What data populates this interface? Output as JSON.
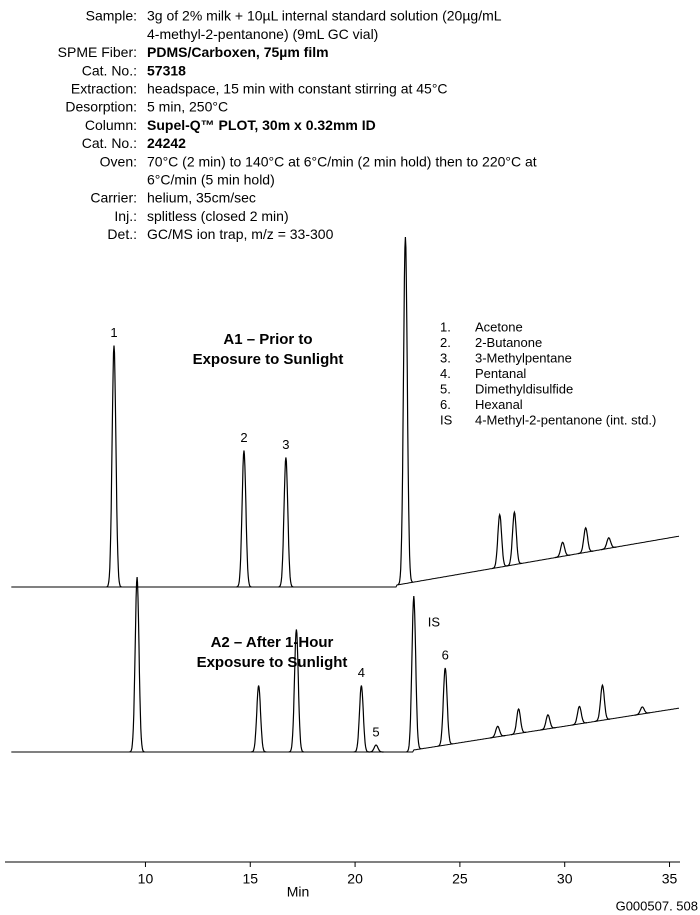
{
  "chart_data": {
    "type": "chromatogram",
    "method": [
      {
        "label": "Sample:",
        "lines": [
          "3g of 2% milk + 10µL internal standard solution (20µg/mL",
          "4-methyl-2-pentanone) (9mL GC vial)"
        ],
        "bold": false
      },
      {
        "label": "SPME Fiber:",
        "lines": [
          "PDMS/Carboxen, 75µm film"
        ],
        "bold": true
      },
      {
        "label": "Cat. No.:",
        "lines": [
          "57318"
        ],
        "bold": true
      },
      {
        "label": "Extraction:",
        "lines": [
          "headspace, 15 min with constant stirring at 45°C"
        ],
        "bold": false
      },
      {
        "label": "Desorption:",
        "lines": [
          "5 min, 250°C"
        ],
        "bold": false
      },
      {
        "label": "Column:",
        "lines": [
          "Supel-Q™ PLOT, 30m x 0.32mm ID"
        ],
        "bold": true
      },
      {
        "label": "Cat. No.:",
        "lines": [
          "24242"
        ],
        "bold": true
      },
      {
        "label": "Oven:",
        "lines": [
          "70°C (2 min) to 140°C at 6°C/min (2 min hold) then to 220°C at",
          "6°C/min (5 min hold)"
        ],
        "bold": false
      },
      {
        "label": "Carrier:",
        "lines": [
          "helium, 35cm/sec"
        ],
        "bold": false
      },
      {
        "label": "Inj.:",
        "lines": [
          "splitless (closed 2 min)"
        ],
        "bold": false
      },
      {
        "label": "Det.:",
        "lines": [
          "GC/MS ion trap, m/z = 33-300"
        ],
        "bold": false
      }
    ],
    "legend": [
      {
        "key": "1.",
        "name": "Acetone"
      },
      {
        "key": "2.",
        "name": "2-Butanone"
      },
      {
        "key": "3.",
        "name": "3-Methylpentane"
      },
      {
        "key": "4.",
        "name": "Pentanal"
      },
      {
        "key": "5.",
        "name": "Dimethyldisulfide"
      },
      {
        "key": "6.",
        "name": "Hexanal"
      },
      {
        "key": "IS",
        "name": "4-Methyl-2-pentanone (int. std.)"
      }
    ],
    "xlabel": "Min",
    "xlim": [
      3.3,
      35.5
    ],
    "xticks": [
      10,
      15,
      20,
      25,
      30,
      35
    ],
    "color": "#000000",
    "chromatograms": [
      {
        "title": [
          "A1 – Prior to",
          "Exposure to Sunlight"
        ],
        "peaks": [
          {
            "label": "1",
            "time": 8.5,
            "height": 69
          },
          {
            "label": "2",
            "time": 14.7,
            "height": 39
          },
          {
            "label": "3",
            "time": 16.7,
            "height": 37
          },
          {
            "label": null,
            "time": 22.4,
            "height": 99
          },
          {
            "label": null,
            "time": 26.9,
            "height": 15
          },
          {
            "label": null,
            "time": 27.6,
            "height": 15
          },
          {
            "label": null,
            "time": 29.9,
            "height": 4
          },
          {
            "label": null,
            "time": 31.0,
            "height": 7
          },
          {
            "label": null,
            "time": 32.1,
            "height": 3
          }
        ]
      },
      {
        "title": [
          "A2 – After 1-Hour",
          "Exposure to Sunlight"
        ],
        "peaks": [
          {
            "label": null,
            "time": 9.6,
            "height": 50
          },
          {
            "label": null,
            "time": 15.4,
            "height": 19
          },
          {
            "label": null,
            "time": 17.2,
            "height": 35
          },
          {
            "label": "4",
            "time": 20.3,
            "height": 19
          },
          {
            "label": "5",
            "time": 21.0,
            "height": 2
          },
          {
            "label": "IS",
            "time": 22.8,
            "height": 44
          },
          {
            "label": "6",
            "time": 24.3,
            "height": 22
          },
          {
            "label": null,
            "time": 26.8,
            "height": 3
          },
          {
            "label": null,
            "time": 27.8,
            "height": 7
          },
          {
            "label": null,
            "time": 29.2,
            "height": 4
          },
          {
            "label": null,
            "time": 30.7,
            "height": 5
          },
          {
            "label": null,
            "time": 31.8,
            "height": 10
          },
          {
            "label": null,
            "time": 33.7,
            "height": 2
          }
        ]
      }
    ],
    "footer": "G000507. 508"
  }
}
